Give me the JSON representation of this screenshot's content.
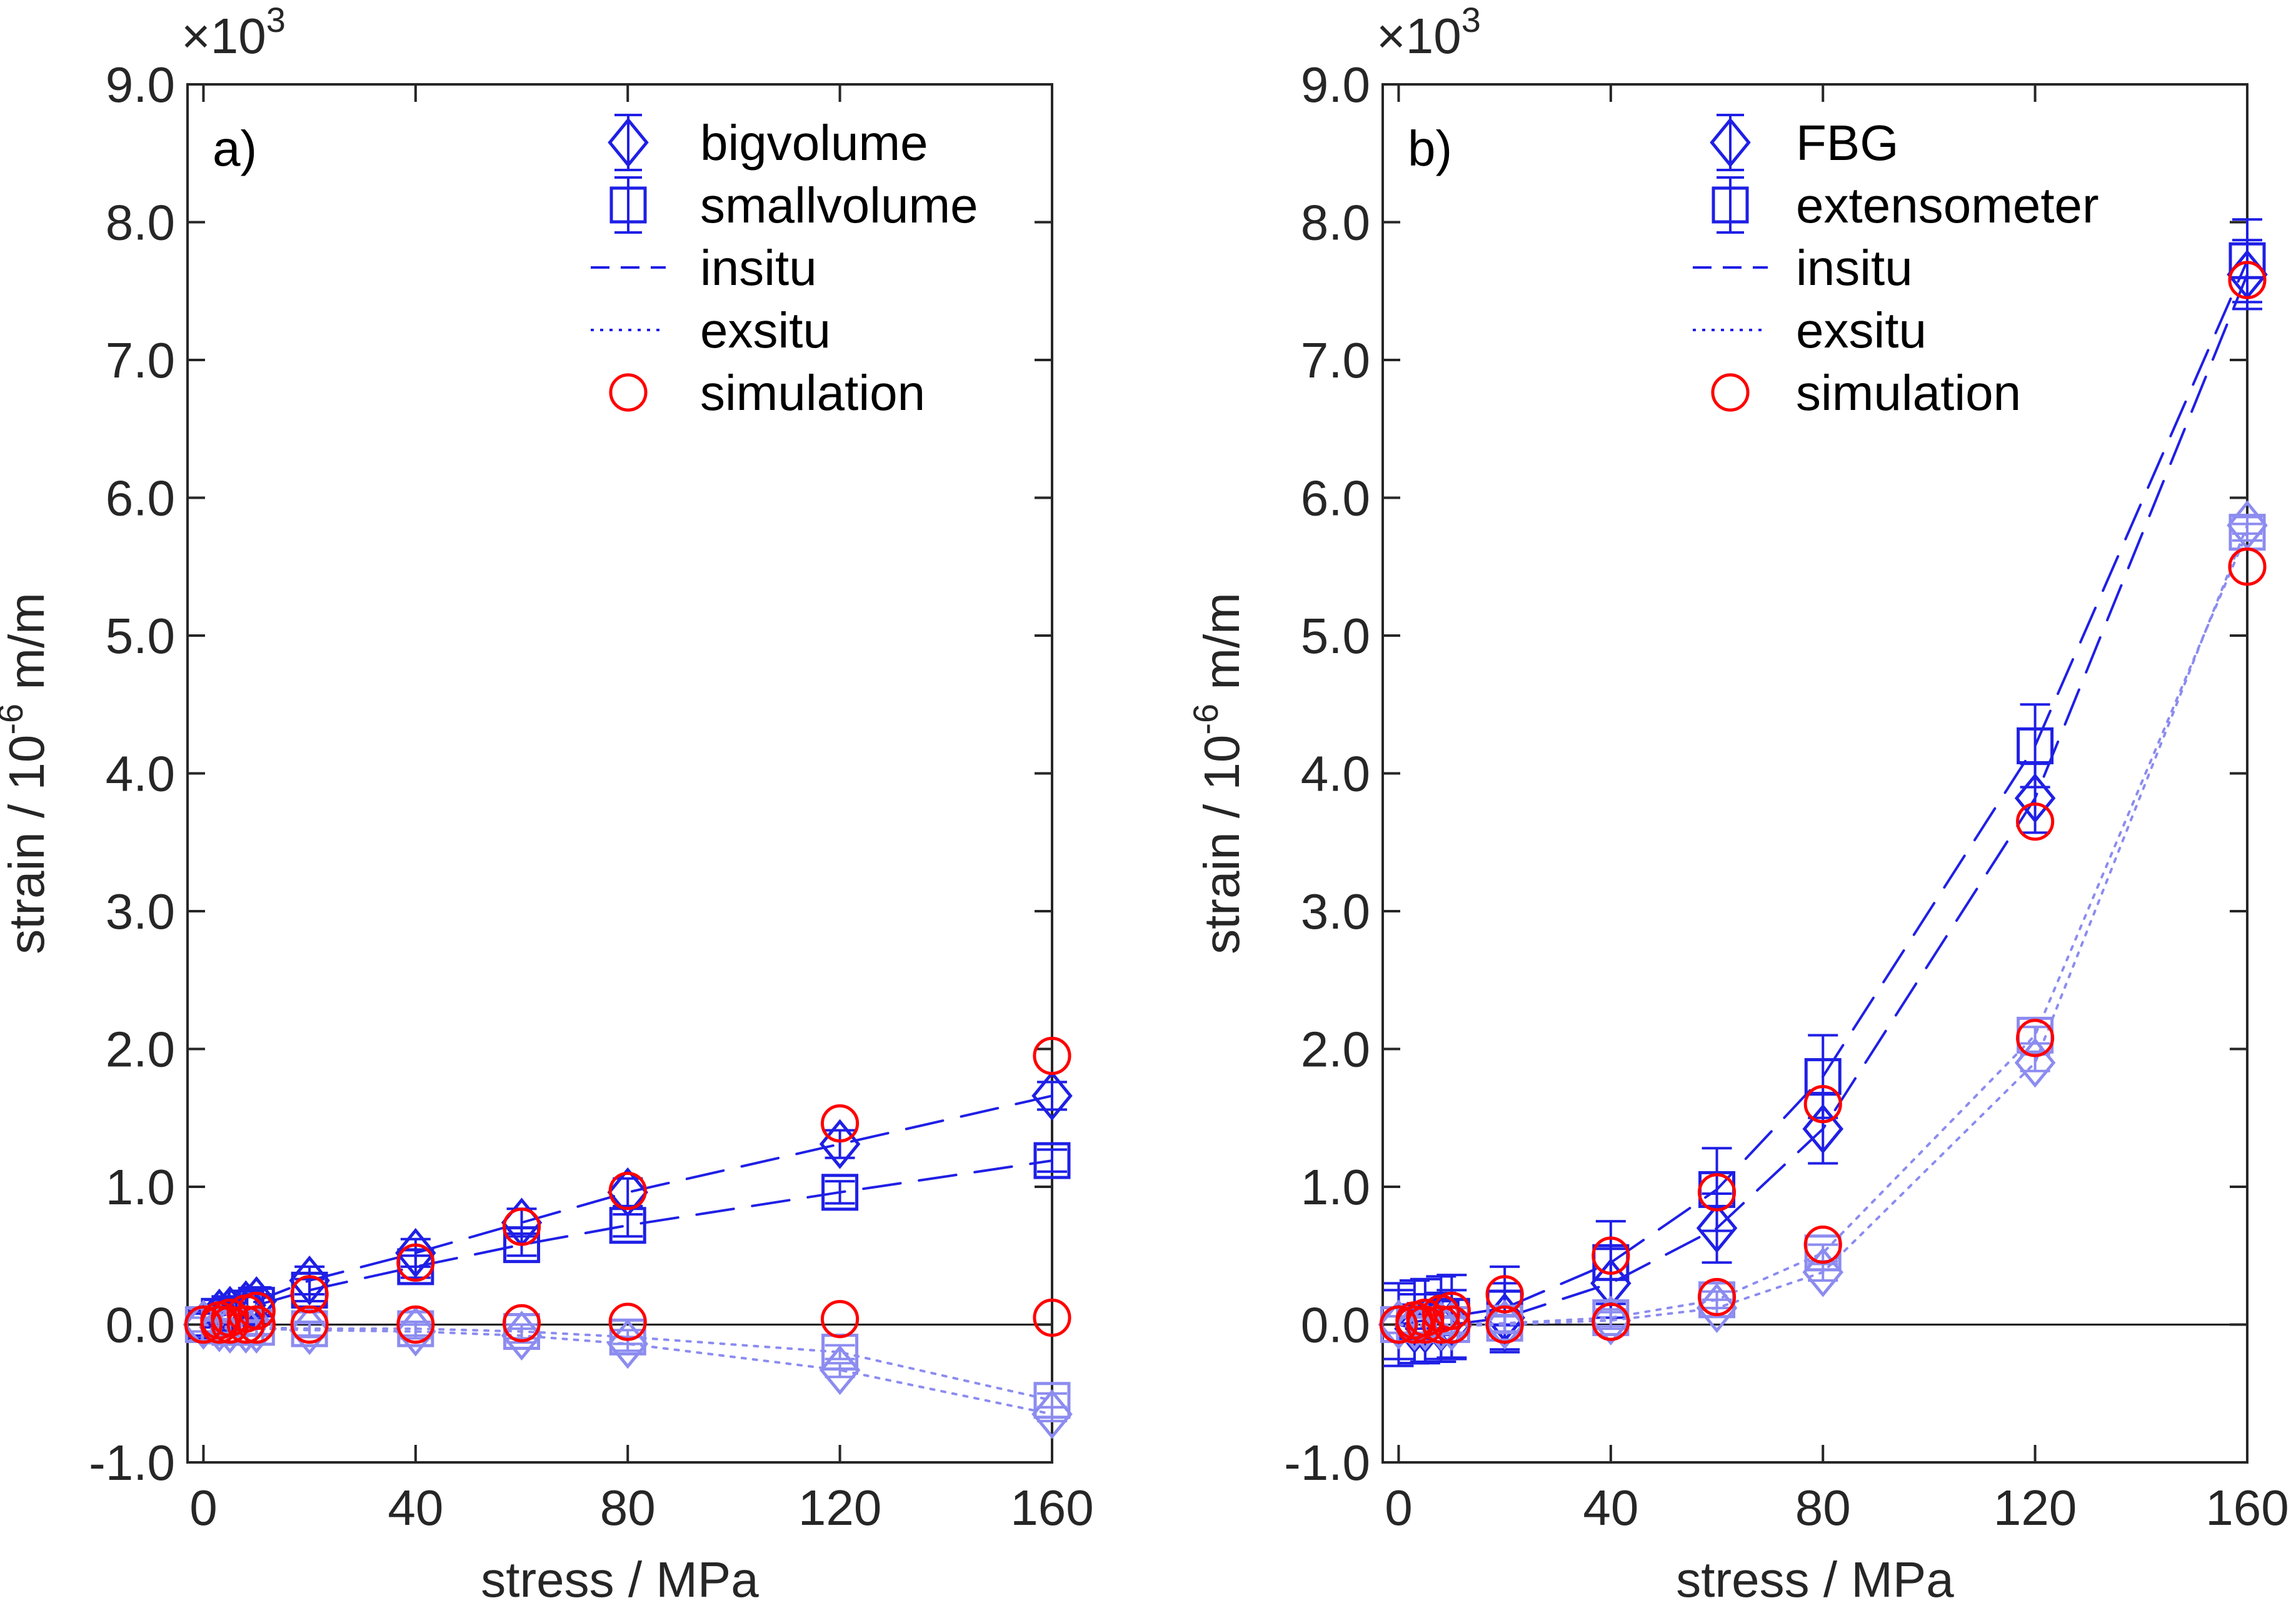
{
  "chart_data": [
    {
      "type": "scatter",
      "panel_label": "a)",
      "xlabel": "stress / MPa",
      "ylabel_main": "strain / 10",
      "ylabel_exp": "-6",
      "ylabel_unit": " m/m",
      "y_multiplier_base": "×10",
      "y_multiplier_exp": "3",
      "xlim": [
        -3,
        160
      ],
      "ylim": [
        -1.0,
        9.0
      ],
      "xticks": [
        0,
        40,
        80,
        120,
        160
      ],
      "xtick_labels": [
        "0",
        "40",
        "80",
        "120",
        "160"
      ],
      "yticks": [
        -1,
        0,
        1,
        2,
        3,
        4,
        5,
        6,
        7,
        8,
        9
      ],
      "ytick_labels": [
        "-1.0",
        "0.0",
        "1.0",
        "2.0",
        "3.0",
        "4.0",
        "5.0",
        "6.0",
        "7.0",
        "8.0",
        "9.0"
      ],
      "legend_position": "top-right",
      "legend": [
        {
          "label": "bigvolume",
          "marker": "diamond-errorbar"
        },
        {
          "label": "smallvolume",
          "marker": "square-errorbar"
        },
        {
          "label": "insitu",
          "marker": "dashed-line"
        },
        {
          "label": "exsitu",
          "marker": "dotted-line"
        },
        {
          "label": "simulation",
          "marker": "circle"
        }
      ],
      "colors": {
        "insitu": "#1f1fe6",
        "exsitu": "#8c8cf0",
        "simulation": "#ff0000"
      },
      "series": [
        {
          "name": "bigvolume insitu",
          "marker": "diamond",
          "style": "insitu",
          "x": [
            0,
            3,
            5,
            8,
            10,
            20,
            40,
            60,
            80,
            120,
            160
          ],
          "y": [
            0.0,
            0.08,
            0.1,
            0.14,
            0.17,
            0.32,
            0.52,
            0.74,
            0.96,
            1.31,
            1.66
          ],
          "err": 0.1
        },
        {
          "name": "smallvolume insitu",
          "marker": "square",
          "style": "insitu",
          "x": [
            0,
            3,
            5,
            8,
            10,
            20,
            40,
            60,
            80,
            120,
            160
          ],
          "y": [
            0.0,
            0.06,
            0.08,
            0.12,
            0.14,
            0.25,
            0.42,
            0.58,
            0.72,
            0.96,
            1.19
          ],
          "err": 0.08
        },
        {
          "name": "bigvolume exsitu",
          "marker": "diamond",
          "style": "exsitu",
          "x": [
            0,
            3,
            5,
            8,
            10,
            20,
            40,
            60,
            80,
            120,
            160
          ],
          "y": [
            0.0,
            -0.02,
            -0.03,
            -0.03,
            -0.03,
            -0.04,
            -0.05,
            -0.08,
            -0.14,
            -0.33,
            -0.65
          ],
          "err": 0.05
        },
        {
          "name": "smallvolume exsitu",
          "marker": "square",
          "style": "exsitu",
          "x": [
            0,
            3,
            5,
            8,
            10,
            20,
            40,
            60,
            80,
            120,
            160
          ],
          "y": [
            0.0,
            -0.01,
            -0.02,
            -0.02,
            -0.02,
            -0.03,
            -0.03,
            -0.05,
            -0.09,
            -0.2,
            -0.55
          ],
          "err": 0.05
        },
        {
          "name": "simulation insitu",
          "marker": "circle",
          "style": "simulation",
          "x": [
            0,
            3,
            5,
            8,
            10,
            20,
            40,
            60,
            80,
            120,
            160
          ],
          "y": [
            0.0,
            0.03,
            0.05,
            0.08,
            0.1,
            0.22,
            0.45,
            0.71,
            0.97,
            1.46,
            1.95
          ]
        },
        {
          "name": "simulation exsitu",
          "marker": "circle",
          "style": "simulation",
          "x": [
            0,
            3,
            5,
            8,
            10,
            20,
            40,
            60,
            80,
            120,
            160
          ],
          "y": [
            0.0,
            0.0,
            0.0,
            0.0,
            0.0,
            0.0,
            0.0,
            0.01,
            0.02,
            0.04,
            0.05
          ]
        }
      ]
    },
    {
      "type": "scatter",
      "panel_label": "b)",
      "xlabel": "stress / MPa",
      "ylabel_main": "strain / 10",
      "ylabel_exp": "-6",
      "ylabel_unit": " m/m",
      "y_multiplier_base": "×10",
      "y_multiplier_exp": "3",
      "xlim": [
        -3,
        160
      ],
      "ylim": [
        -1.0,
        9.0
      ],
      "xticks": [
        0,
        40,
        80,
        120,
        160
      ],
      "xtick_labels": [
        "0",
        "40",
        "80",
        "120",
        "160"
      ],
      "yticks": [
        -1,
        0,
        1,
        2,
        3,
        4,
        5,
        6,
        7,
        8,
        9
      ],
      "ytick_labels": [
        "-1.0",
        "0.0",
        "1.0",
        "2.0",
        "3.0",
        "4.0",
        "5.0",
        "6.0",
        "7.0",
        "8.0",
        "9.0"
      ],
      "legend_position": "top-center",
      "legend": [
        {
          "label": "FBG",
          "marker": "diamond-errorbar"
        },
        {
          "label": "extensometer",
          "marker": "square-errorbar"
        },
        {
          "label": "insitu",
          "marker": "dashed-line"
        },
        {
          "label": "exsitu",
          "marker": "dotted-line"
        },
        {
          "label": "simulation",
          "marker": "circle"
        }
      ],
      "colors": {
        "insitu": "#1f1fe6",
        "exsitu": "#8c8cf0",
        "simulation": "#ff0000"
      },
      "series": [
        {
          "name": "FBG insitu",
          "marker": "diamond",
          "style": "insitu",
          "x": [
            0,
            3,
            5,
            8,
            10,
            20,
            40,
            60,
            80,
            120,
            160
          ],
          "y": [
            0.0,
            -0.03,
            -0.03,
            -0.02,
            0.0,
            0.05,
            0.3,
            0.7,
            1.42,
            3.82,
            7.62
          ],
          "err": 0.25
        },
        {
          "name": "extensometer insitu",
          "marker": "square",
          "style": "insitu",
          "x": [
            0,
            3,
            5,
            8,
            10,
            20,
            40,
            60,
            80,
            120,
            160
          ],
          "y": [
            0.0,
            0.02,
            0.03,
            0.05,
            0.06,
            0.12,
            0.45,
            0.98,
            1.8,
            4.2,
            7.72
          ],
          "err": 0.3
        },
        {
          "name": "FBG exsitu",
          "marker": "diamond",
          "style": "exsitu",
          "x": [
            0,
            3,
            5,
            8,
            10,
            20,
            40,
            60,
            80,
            120,
            160
          ],
          "y": [
            0.0,
            -0.01,
            -0.01,
            -0.01,
            -0.01,
            0.0,
            0.03,
            0.12,
            0.38,
            1.9,
            5.8
          ],
          "err": 0.06
        },
        {
          "name": "extensometer exsitu",
          "marker": "square",
          "style": "exsitu",
          "x": [
            0,
            3,
            5,
            8,
            10,
            20,
            40,
            60,
            80,
            120,
            160
          ],
          "y": [
            0.0,
            0.0,
            0.0,
            0.0,
            0.0,
            0.01,
            0.05,
            0.18,
            0.52,
            2.1,
            5.75
          ],
          "err": 0.06
        },
        {
          "name": "simulation insitu",
          "marker": "circle",
          "style": "simulation",
          "x": [
            0,
            3,
            5,
            8,
            10,
            20,
            40,
            60,
            80,
            120,
            160
          ],
          "y": [
            0.0,
            0.03,
            0.05,
            0.08,
            0.1,
            0.22,
            0.5,
            0.96,
            1.6,
            3.65,
            7.58
          ]
        },
        {
          "name": "simulation exsitu",
          "marker": "circle",
          "style": "simulation",
          "x": [
            0,
            3,
            5,
            8,
            10,
            20,
            40,
            60,
            80,
            120,
            160
          ],
          "y": [
            0.0,
            0.0,
            0.0,
            0.0,
            0.0,
            0.0,
            0.02,
            0.2,
            0.58,
            2.08,
            5.5
          ]
        }
      ]
    }
  ]
}
